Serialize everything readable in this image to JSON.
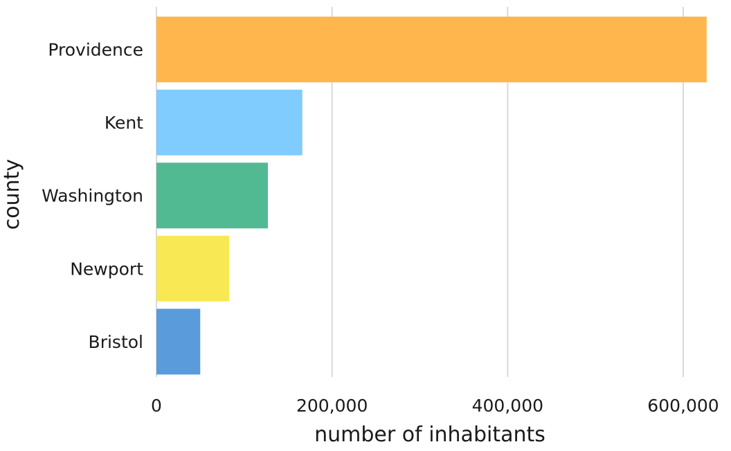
{
  "chart_data": {
    "type": "bar",
    "orientation": "horizontal",
    "title": "",
    "xlabel": "number of inhabitants",
    "ylabel": "county",
    "categories": [
      "Providence",
      "Kent",
      "Washington",
      "Newport",
      "Bristol"
    ],
    "values": [
      626667,
      166158,
      126979,
      82888,
      49875
    ],
    "colors": [
      "#FFB74D",
      "#80CBFF",
      "#52BA93",
      "#F8E954",
      "#5A9BDB"
    ],
    "xlim": [
      0,
      620000
    ],
    "xticks": [
      0,
      200000,
      400000,
      600000
    ],
    "xtick_labels": [
      "0",
      "200,000",
      "400,000",
      "600,000"
    ],
    "grid": "vertical",
    "legend": "none"
  }
}
